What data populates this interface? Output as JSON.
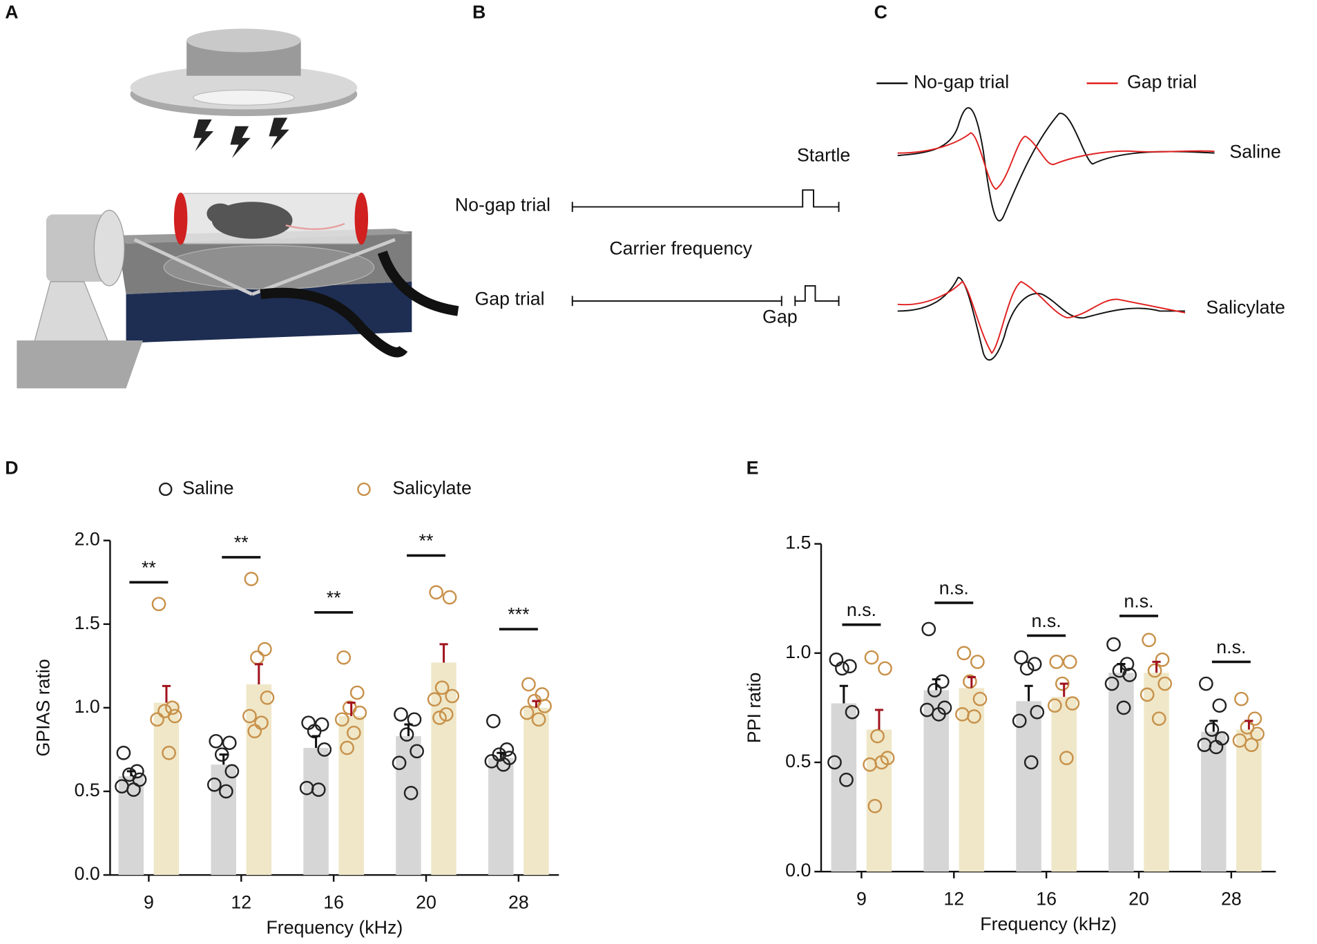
{
  "panel_labels": [
    "A",
    "B",
    "C",
    "D",
    "E"
  ],
  "panel_b": {
    "startle": "Startle",
    "no_gap": "No-gap trial",
    "carrier": "Carrier frequency",
    "gap_trial": "Gap trial",
    "gap": "Gap"
  },
  "panel_c": {
    "legend": [
      "No-gap trial",
      "Gap trial"
    ],
    "rows": [
      "Saline",
      "Salicylate"
    ]
  },
  "chart_data": [
    {
      "type": "bar",
      "ylabel": "GPIAS ratio",
      "xlabel": "Frequency (kHz)",
      "categories": [
        "9",
        "12",
        "16",
        "20",
        "28"
      ],
      "ylim": [
        0,
        2
      ],
      "yticks": [
        {
          "value": 0,
          "label": "0.0"
        },
        {
          "value": 0.5,
          "label": "0.5"
        },
        {
          "value": 1,
          "label": "1.0"
        },
        {
          "value": 1.5,
          "label": "1.5"
        },
        {
          "value": 2,
          "label": "2.0"
        }
      ],
      "legend": true,
      "series": [
        {
          "name": "Saline",
          "color": "#222222",
          "bar_color": "#d6d6d6",
          "error_color": "#111111",
          "values": [
            0.59,
            0.66,
            0.76,
            0.83,
            0.7
          ],
          "errors": [
            0.03,
            0.06,
            0.07,
            0.07,
            0.03
          ],
          "points": [
            [
              0.73,
              0.62,
              0.6,
              0.57,
              0.53,
              0.51
            ],
            [
              0.8,
              0.79,
              0.72,
              0.62,
              0.54,
              0.5
            ],
            [
              0.91,
              0.9,
              0.86,
              0.75,
              0.52,
              0.51
            ],
            [
              0.96,
              0.93,
              0.84,
              0.74,
              0.67,
              0.49
            ],
            [
              0.92,
              0.75,
              0.72,
              0.7,
              0.68,
              0.66
            ]
          ]
        },
        {
          "name": "Salicylate",
          "color": "#c8914a",
          "bar_color": "#efe7c8",
          "error_color": "#a0141e",
          "values": [
            1.03,
            1.14,
            0.95,
            1.27,
            1.0
          ],
          "errors": [
            0.1,
            0.12,
            0.08,
            0.11,
            0.04
          ],
          "points": [
            [
              1.62,
              1.0,
              0.98,
              0.95,
              0.93,
              0.73
            ],
            [
              1.77,
              1.35,
              1.3,
              1.06,
              0.95,
              0.91,
              0.86
            ],
            [
              1.3,
              1.09,
              1.0,
              0.97,
              0.93,
              0.85,
              0.76
            ],
            [
              1.69,
              1.66,
              1.12,
              1.07,
              1.05,
              0.96,
              0.94
            ],
            [
              1.14,
              1.08,
              1.04,
              1.01,
              0.97,
              0.93
            ]
          ]
        }
      ],
      "annotations": [
        {
          "text": "**",
          "y": 1.75
        },
        {
          "text": "**",
          "y": 1.9
        },
        {
          "text": "**",
          "y": 1.57
        },
        {
          "text": "**",
          "y": 1.91
        },
        {
          "text": "***",
          "y": 1.47
        }
      ]
    },
    {
      "type": "bar",
      "ylabel": "PPI ratio",
      "xlabel": "Frequency (kHz)",
      "categories": [
        "9",
        "12",
        "16",
        "20",
        "28"
      ],
      "ylim": [
        0,
        1.5
      ],
      "yticks": [
        {
          "value": 0,
          "label": "0.0"
        },
        {
          "value": 0.5,
          "label": "0.5"
        },
        {
          "value": 1,
          "label": "1.0"
        },
        {
          "value": 1.5,
          "label": "1.5"
        }
      ],
      "legend": false,
      "series": [
        {
          "color": "#222222",
          "bar_color": "#d6d6d6",
          "error_color": "#111111",
          "values": [
            0.77,
            0.83,
            0.78,
            0.91,
            0.64
          ],
          "errors": [
            0.08,
            0.05,
            0.07,
            0.04,
            0.05
          ],
          "points": [
            [
              0.97,
              0.94,
              0.93,
              0.73,
              0.5,
              0.42
            ],
            [
              1.11,
              0.87,
              0.83,
              0.75,
              0.74,
              0.72
            ],
            [
              0.98,
              0.95,
              0.93,
              0.73,
              0.69,
              0.5
            ],
            [
              1.04,
              0.95,
              0.92,
              0.9,
              0.86,
              0.75
            ],
            [
              0.86,
              0.76,
              0.65,
              0.61,
              0.58,
              0.57
            ]
          ]
        },
        {
          "color": "#c8914a",
          "bar_color": "#efe7c8",
          "error_color": "#a0141e",
          "values": [
            0.65,
            0.84,
            0.8,
            0.91,
            0.65
          ],
          "errors": [
            0.09,
            0.05,
            0.06,
            0.05,
            0.04
          ],
          "points": [
            [
              0.98,
              0.93,
              0.62,
              0.52,
              0.49,
              0.5,
              0.3
            ],
            [
              1.0,
              0.96,
              0.87,
              0.79,
              0.72,
              0.71
            ],
            [
              0.96,
              0.96,
              0.86,
              0.77,
              0.76,
              0.52
            ],
            [
              1.06,
              0.97,
              0.92,
              0.86,
              0.81,
              0.7
            ],
            [
              0.79,
              0.7,
              0.66,
              0.63,
              0.6,
              0.58
            ]
          ]
        }
      ],
      "annotations": [
        {
          "text": "n.s.",
          "y": 1.13
        },
        {
          "text": "n.s.",
          "y": 1.23
        },
        {
          "text": "n.s.",
          "y": 1.08
        },
        {
          "text": "n.s.",
          "y": 1.17
        },
        {
          "text": "n.s.",
          "y": 0.96
        }
      ]
    }
  ]
}
